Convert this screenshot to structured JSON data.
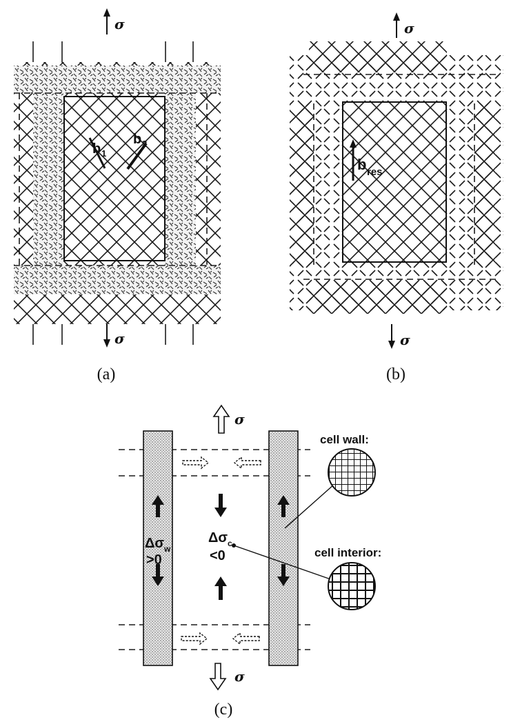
{
  "panel_a": {
    "caption": "(a)",
    "sigma_top": "σ",
    "sigma_bottom": "σ",
    "vector_b1": "b",
    "vector_b1_sub": "1",
    "vector_b2": "b",
    "vector_b2_sub": "2"
  },
  "panel_b": {
    "caption": "(b)",
    "sigma_top": "σ",
    "sigma_bottom": "σ",
    "vector_bres": "b",
    "vector_bres_sub": "res"
  },
  "panel_c": {
    "caption": "(c)",
    "sigma_top": "σ",
    "sigma_bottom": "σ",
    "wall_delta": "Δσ",
    "wall_delta_sub": "w",
    "wall_sign": ">0",
    "interior_delta": "Δσ",
    "interior_delta_sub": "c",
    "interior_sign": "<0",
    "label_cell_wall": "cell wall:",
    "label_cell_interior": "cell interior:"
  }
}
